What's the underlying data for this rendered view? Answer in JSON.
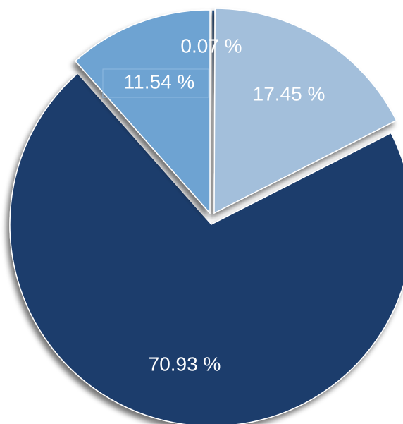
{
  "chart_data": {
    "type": "pie",
    "slices": [
      {
        "label": "0.07 %",
        "value": 0.07,
        "color": "#2c5a93"
      },
      {
        "label": "17.45 %",
        "value": 17.45,
        "color": "#a3bfdb"
      },
      {
        "label": "70.93 %",
        "value": 70.93,
        "color": "#1c3c6c"
      },
      {
        "label": "11.54 %",
        "value": 11.54,
        "color": "#6ea3d2"
      }
    ],
    "start": "12 o'clock",
    "direction": "clockwise",
    "exploded": true,
    "legend": "none"
  }
}
